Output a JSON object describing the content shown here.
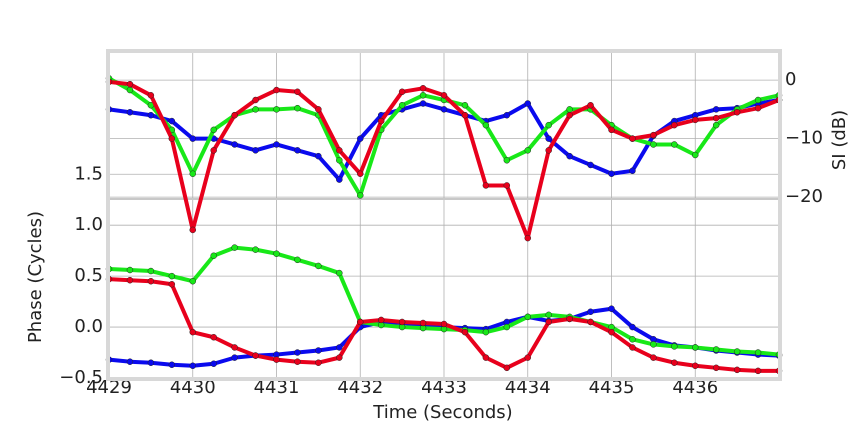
{
  "chart_data": {
    "type": "scatter",
    "xlabel": "Time (Seconds)",
    "ylabel": "Phase (Cycles)",
    "y2label": "SI (dB)",
    "x": [
      4429,
      4429.25,
      4429.5,
      4429.75,
      4430,
      4430.25,
      4430.5,
      4430.75,
      4431,
      4431.25,
      4431.5,
      4431.75,
      4432,
      4432.25,
      4432.5,
      4432.75,
      4433,
      4433.25,
      4433.5,
      4433.75,
      4434,
      4434.25,
      4434.5,
      4434.75,
      4435,
      4435.25,
      4435.5,
      4435.75,
      4436,
      4436.25,
      4436.5,
      4436.75,
      4437
    ],
    "xlim": [
      4429,
      4437
    ],
    "xticks": [
      4429,
      4430,
      4431,
      4432,
      4433,
      4434,
      4435,
      4436
    ],
    "ylim": [
      -0.5,
      2.7
    ],
    "yticks": [
      {
        "value": -0.5,
        "label": "−0.5"
      },
      {
        "value": 0,
        "label": "0.0"
      },
      0.5,
      {
        "value": 1,
        "label": "1.0"
      },
      1.5
    ],
    "y2lim": [
      -50.9,
      4.8
    ],
    "y2ticks": [
      0,
      {
        "value": -10,
        "label": "−10"
      },
      {
        "value": -20,
        "label": "−20"
      }
    ],
    "grid": true,
    "series": [
      {
        "color": "#0a0aee",
        "values": [
          -0.32,
          -0.34,
          -0.35,
          -0.37,
          -0.38,
          -0.36,
          -0.3,
          -0.28,
          -0.27,
          -0.25,
          -0.23,
          -0.2,
          0.0,
          0.05,
          0.04,
          0.02,
          0.0,
          -0.01,
          -0.02,
          0.05,
          0.1,
          0.06,
          0.08,
          0.15,
          0.18,
          0.0,
          -0.12,
          -0.18,
          -0.2,
          -0.23,
          -0.25,
          -0.27,
          -0.28
        ]
      },
      {
        "color": "#18e818",
        "values": [
          0.57,
          0.56,
          0.55,
          0.5,
          0.45,
          0.7,
          0.78,
          0.76,
          0.72,
          0.66,
          0.6,
          0.53,
          0.05,
          0.02,
          0.0,
          -0.01,
          -0.02,
          -0.03,
          -0.05,
          0.0,
          0.1,
          0.12,
          0.1,
          0.05,
          0.0,
          -0.12,
          -0.17,
          -0.19,
          -0.2,
          -0.22,
          -0.24,
          -0.25,
          -0.27
        ]
      },
      {
        "color": "#e8001c",
        "values": [
          0.47,
          0.46,
          0.45,
          0.42,
          -0.05,
          -0.1,
          -0.2,
          -0.28,
          -0.32,
          -0.34,
          -0.35,
          -0.3,
          0.05,
          0.07,
          0.05,
          0.04,
          0.03,
          -0.05,
          -0.3,
          -0.4,
          -0.3,
          0.05,
          0.08,
          0.05,
          -0.05,
          -0.2,
          -0.3,
          -0.35,
          -0.38,
          -0.4,
          -0.42,
          -0.43,
          -0.43
        ]
      },
      {
        "color": "#0a0aee",
        "axis": "y2",
        "values": [
          -5,
          -5.5,
          -6,
          -7,
          -10,
          -10,
          -11,
          -12,
          -11,
          -12,
          -13,
          -17,
          -10,
          -6,
          -5,
          -4,
          -5,
          -6,
          -7,
          -6,
          -4,
          -10,
          -13,
          -14.5,
          -16,
          -15.5,
          -9.5,
          -7,
          -6,
          -5,
          -4.8,
          -4,
          -3.4
        ]
      },
      {
        "color": "#18e818",
        "axis": "y2",
        "values": [
          0.3,
          -1.7,
          -4.3,
          -8.5,
          -16,
          -8.5,
          -6,
          -5,
          -5,
          -4.8,
          -6,
          -13.7,
          -19.7,
          -8.5,
          -4.3,
          -2.6,
          -3.4,
          -4.3,
          -7.7,
          -13.7,
          -12,
          -7.7,
          -5,
          -5,
          -7.7,
          -10,
          -11,
          -11,
          -12.8,
          -7.7,
          -5,
          -3.4,
          -2.6
        ]
      },
      {
        "color": "#e8001c",
        "axis": "y2",
        "values": [
          -0.3,
          -0.7,
          -2.6,
          -10,
          -25.6,
          -12,
          -6,
          -3.4,
          -1.7,
          -2,
          -5,
          -12,
          -16,
          -7,
          -2,
          -1.4,
          -2.6,
          -6,
          -18,
          -18,
          -27,
          -12,
          -6,
          -4.3,
          -8.5,
          -10,
          -9.4,
          -7.7,
          -6.8,
          -6.5,
          -5.5,
          -4.8,
          -3.4
        ]
      }
    ]
  }
}
